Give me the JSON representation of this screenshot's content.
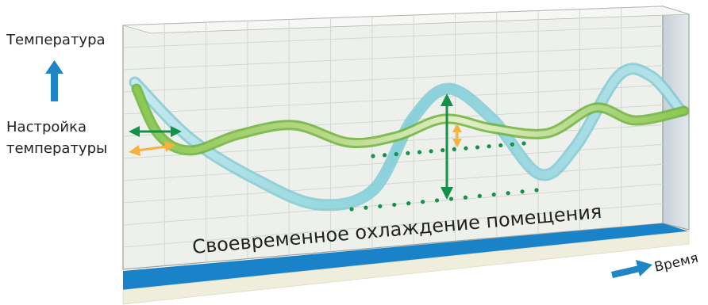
{
  "labels": {
    "temperature": "Температура",
    "setting_line1": "Настройка",
    "setting_line2": "температуры",
    "caption": "Своевременное охлаждение помещения",
    "time": "Время"
  },
  "colors": {
    "wall_fill": "#eef0ec",
    "wall_side": "#d6dde3",
    "grid": "#cfd4cf",
    "floor_blue": "#1a82c8",
    "floor_cream": "#efeedd",
    "ribbon_cyan": "#8fd4dd",
    "ribbon_green": "#7fc24a",
    "ribbon_green_light": "#d8e8b5",
    "arrow_blue": "#1e86c6",
    "arrow_green": "#149048",
    "arrow_orange": "#f5b23c",
    "dots_green": "#149048"
  },
  "icons": {
    "temperature_axis": "arrow-up-icon",
    "time_axis": "arrow-right-icon",
    "setting_green": "double-arrow-horizontal-icon",
    "setting_orange": "double-arrow-horizontal-icon",
    "large_swing": "double-arrow-vertical-icon",
    "small_swing": "double-arrow-vertical-icon"
  }
}
